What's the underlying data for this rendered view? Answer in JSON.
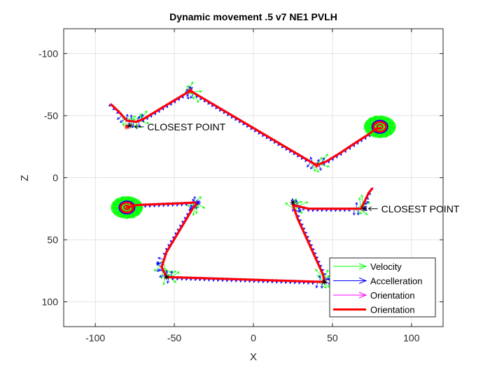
{
  "chart_data": {
    "type": "line",
    "title": "Dynamic movement .5 v7 NE1 PVLH",
    "xlabel": "X",
    "ylabel": "Z",
    "xlim": [
      -120,
      120
    ],
    "ylim": [
      -120,
      120
    ],
    "y_reversed": true,
    "x_ticks": [
      -100,
      -50,
      0,
      50,
      100
    ],
    "y_ticks": [
      -100,
      -50,
      0,
      50,
      100
    ],
    "x_tick_labels": [
      "-100",
      "-50",
      "0",
      "50",
      "100"
    ],
    "y_tick_labels": [
      "-100",
      "-50",
      "0",
      "50",
      "100"
    ],
    "grid": true,
    "legend_position": "bottom-right",
    "series": [
      {
        "name": "Velocity",
        "color": "#00ff00",
        "style": "arrows"
      },
      {
        "name": "Accelleration",
        "color": "#0000ff",
        "style": "arrows"
      },
      {
        "name": "Orientation",
        "color": "#ff00ff",
        "style": "arrows"
      },
      {
        "name": "Orientation",
        "color": "#ff0000",
        "style": "thick-line"
      }
    ],
    "paths": [
      {
        "points": [
          [
            -90,
            -59
          ],
          [
            -85,
            -53
          ],
          [
            -80,
            -46
          ],
          [
            -74,
            -45
          ],
          [
            -70,
            -47
          ],
          [
            -40,
            -70
          ],
          [
            40,
            -10
          ],
          [
            46,
            -13
          ],
          [
            55,
            -20
          ],
          [
            62,
            -26
          ],
          [
            68,
            -31
          ],
          [
            73,
            -35
          ],
          [
            77,
            -39
          ],
          [
            80,
            -40
          ]
        ]
      },
      {
        "points": [
          [
            -80,
            24
          ],
          [
            -74,
            22
          ],
          [
            -35,
            20
          ],
          [
            -38,
            24
          ],
          [
            -55,
            60
          ],
          [
            -58,
            72
          ],
          [
            -55,
            80
          ],
          [
            45,
            84
          ],
          [
            44,
            78
          ],
          [
            28,
            33
          ],
          [
            25,
            22
          ],
          [
            35,
            25
          ],
          [
            68,
            25
          ],
          [
            70,
            20
          ],
          [
            73,
            12
          ],
          [
            75,
            9
          ]
        ]
      }
    ],
    "hotspots": [
      {
        "x": 80,
        "y": -41,
        "color": "#ff0000"
      },
      {
        "x": -80,
        "y": 24,
        "color": "#ff0000"
      }
    ],
    "markers": [
      {
        "x": -80,
        "y": -41,
        "color": "#ff0000"
      },
      {
        "x": -78,
        "y": -42,
        "color": "#000000"
      },
      {
        "x": -40,
        "y": -70,
        "color": "#ff0000"
      },
      {
        "x": 40,
        "y": -10,
        "color": "#ff0000"
      },
      {
        "x": -35,
        "y": 20,
        "color": "#0000ff"
      },
      {
        "x": -55,
        "y": 80,
        "color": "#000000"
      },
      {
        "x": 45,
        "y": 84,
        "color": "#000000"
      },
      {
        "x": 25,
        "y": 20,
        "color": "#000000"
      },
      {
        "x": 70,
        "y": 25,
        "color": "#000000"
      }
    ],
    "annotations": [
      {
        "text": "CLOSEST POINT",
        "x": -76,
        "y": -41
      },
      {
        "text": "CLOSEST POINT",
        "x": 72,
        "y": 25
      }
    ]
  }
}
